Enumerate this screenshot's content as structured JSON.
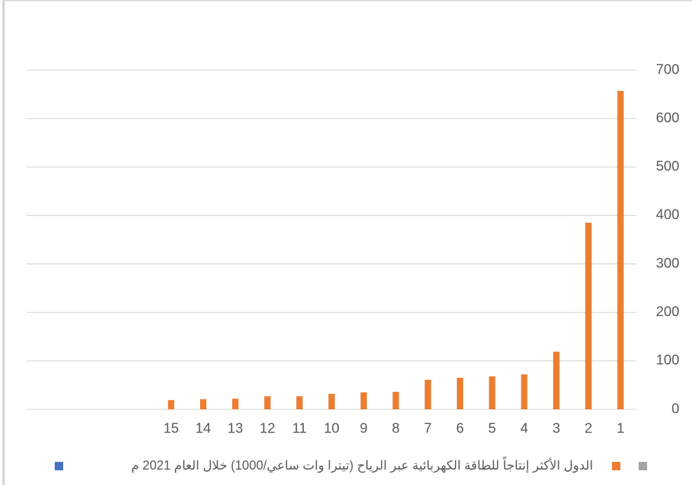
{
  "chart_data": {
    "type": "bar",
    "series": [
      {
        "name": "الدول الأكثر إنتاجاً للطاقة الكهربائية عبر الرياح (تيترا وات ساعي/1000) خلال العام 2021 م",
        "color": "#ed7d31",
        "values": [
          657,
          385,
          119,
          72,
          68,
          65,
          61,
          36,
          35,
          32,
          27,
          27,
          22,
          21,
          19,
          null,
          null,
          null,
          null
        ]
      }
    ],
    "categories": [
      "1",
      "2",
      "3",
      "4",
      "5",
      "6",
      "7",
      "8",
      "9",
      "10",
      "11",
      "12",
      "13",
      "14",
      "15",
      null,
      null,
      null,
      null
    ],
    "x_reversed": true,
    "ylim": [
      0,
      700
    ],
    "yticks": [
      0,
      100,
      200,
      300,
      400,
      500,
      600,
      700
    ],
    "grid": true
  }
}
